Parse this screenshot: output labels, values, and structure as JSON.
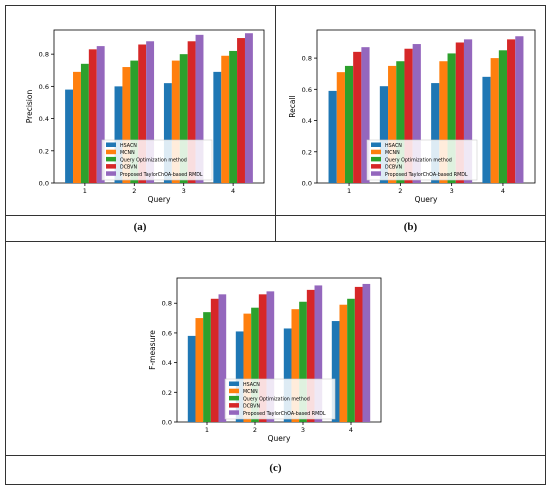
{
  "colors": {
    "HSACN": "#1f77b4",
    "MCNN": "#ff7f0e",
    "Query Optimization method": "#2ca02c",
    "DCBVN": "#d62728",
    "Proposed TaylorChOA-based RMDL": "#9467bd"
  },
  "chart_data": [
    {
      "type": "bar",
      "panel": "(a)",
      "xlabel": "Query",
      "ylabel": "Precision",
      "categories": [
        "1",
        "2",
        "3",
        "4"
      ],
      "ylim": [
        0,
        0.95
      ],
      "yticks": [
        "0.0",
        "0.2",
        "0.4",
        "0.6",
        "0.8"
      ],
      "legend_position": "bottom-center",
      "series": [
        {
          "name": "HSACN",
          "values": [
            0.58,
            0.6,
            0.62,
            0.69
          ]
        },
        {
          "name": "MCNN",
          "values": [
            0.69,
            0.72,
            0.76,
            0.79
          ]
        },
        {
          "name": "Query Optimization method",
          "values": [
            0.74,
            0.76,
            0.8,
            0.82
          ]
        },
        {
          "name": "DCBVN",
          "values": [
            0.83,
            0.86,
            0.88,
            0.9
          ]
        },
        {
          "name": "Proposed TaylorChOA-based RMDL",
          "values": [
            0.85,
            0.88,
            0.92,
            0.93
          ]
        }
      ]
    },
    {
      "type": "bar",
      "panel": "(b)",
      "xlabel": "Query",
      "ylabel": "Recall",
      "categories": [
        "1",
        "2",
        "3",
        "4"
      ],
      "ylim": [
        0,
        0.98
      ],
      "yticks": [
        "0.0",
        "0.2",
        "0.4",
        "0.6",
        "0.8"
      ],
      "legend_position": "bottom-center",
      "series": [
        {
          "name": "HSACN",
          "values": [
            0.59,
            0.62,
            0.64,
            0.68
          ]
        },
        {
          "name": "MCNN",
          "values": [
            0.71,
            0.75,
            0.78,
            0.8
          ]
        },
        {
          "name": "Query Optimization method",
          "values": [
            0.75,
            0.78,
            0.83,
            0.85
          ]
        },
        {
          "name": "DCBVN",
          "values": [
            0.84,
            0.86,
            0.9,
            0.92
          ]
        },
        {
          "name": "Proposed TaylorChOA-based RMDL",
          "values": [
            0.87,
            0.89,
            0.92,
            0.94
          ]
        }
      ]
    },
    {
      "type": "bar",
      "panel": "(c)",
      "xlabel": "Query",
      "ylabel": "F-measure",
      "categories": [
        "1",
        "2",
        "3",
        "4"
      ],
      "ylim": [
        0,
        0.97
      ],
      "yticks": [
        "0.0",
        "0.2",
        "0.4",
        "0.6",
        "0.8"
      ],
      "legend_position": "bottom-center",
      "series": [
        {
          "name": "HSACN",
          "values": [
            0.58,
            0.61,
            0.63,
            0.68
          ]
        },
        {
          "name": "MCNN",
          "values": [
            0.7,
            0.73,
            0.76,
            0.79
          ]
        },
        {
          "name": "Query Optimization method",
          "values": [
            0.74,
            0.77,
            0.81,
            0.83
          ]
        },
        {
          "name": "DCBVN",
          "values": [
            0.83,
            0.86,
            0.89,
            0.91
          ]
        },
        {
          "name": "Proposed TaylorChOA-based RMDL",
          "values": [
            0.86,
            0.88,
            0.92,
            0.93
          ]
        }
      ]
    }
  ]
}
